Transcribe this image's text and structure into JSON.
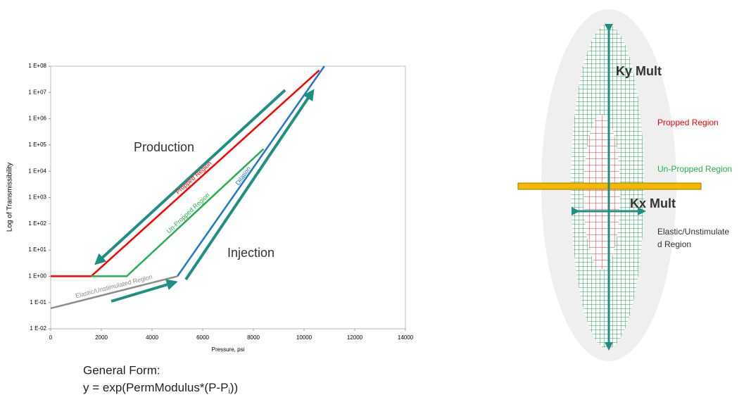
{
  "chart_data": {
    "type": "line",
    "ylabel": "Log of Transmissibility",
    "xlabel": "Pressure, psi",
    "xlim": [
      0,
      14000
    ],
    "xticks": [
      0,
      2000,
      4000,
      6000,
      8000,
      10000,
      12000,
      14000
    ],
    "ylim": [
      0.01,
      100000000
    ],
    "log_y": true,
    "yticks": [
      {
        "value": 0.01,
        "label": "1 E-02"
      },
      {
        "value": 0.1,
        "label": "1 E-01"
      },
      {
        "value": 1,
        "label": "1 E+00"
      },
      {
        "value": 10,
        "label": "1 E+01"
      },
      {
        "value": 100,
        "label": "1 E+02"
      },
      {
        "value": 1000,
        "label": "1 E+03"
      },
      {
        "value": 10000,
        "label": "1 E+04"
      },
      {
        "value": 100000,
        "label": "1 E+05"
      },
      {
        "value": 1000000,
        "label": "1 E+06"
      },
      {
        "value": 10000000,
        "label": "1 E+07"
      },
      {
        "value": 100000000,
        "label": "1 E+08"
      }
    ],
    "series": [
      {
        "name": "Propped Region",
        "color": "#ff0000",
        "x": [
          0,
          1600,
          10600
        ],
        "values": [
          1,
          1,
          70000000
        ]
      },
      {
        "name": "Un-Propped Region",
        "color": "#22b14c",
        "x": [
          1600,
          3000,
          8400
        ],
        "values": [
          1,
          1,
          70000
        ]
      },
      {
        "name": "Dilation",
        "color": "#1f77c8",
        "x": [
          5000,
          10800
        ],
        "values": [
          1,
          100000000
        ]
      },
      {
        "name": "Elastic/Unstimulated Region",
        "color": "#8c8c8c",
        "x": [
          0,
          5000
        ],
        "values": [
          0.06,
          1
        ]
      }
    ],
    "annotations": [
      "Production",
      "Injection"
    ]
  },
  "formula": {
    "heading": "General Form:",
    "text": "y = exp(PermModulus*(P-P",
    "subscript": "i",
    "tail": "))"
  },
  "diagram": {
    "ky": "Ky Mult",
    "kx": "Kx Mult",
    "propped": "Propped Region",
    "unpropped": "Un-Propped Region",
    "elastic": [
      "Elastic/Unstimulate",
      "d Region"
    ]
  }
}
